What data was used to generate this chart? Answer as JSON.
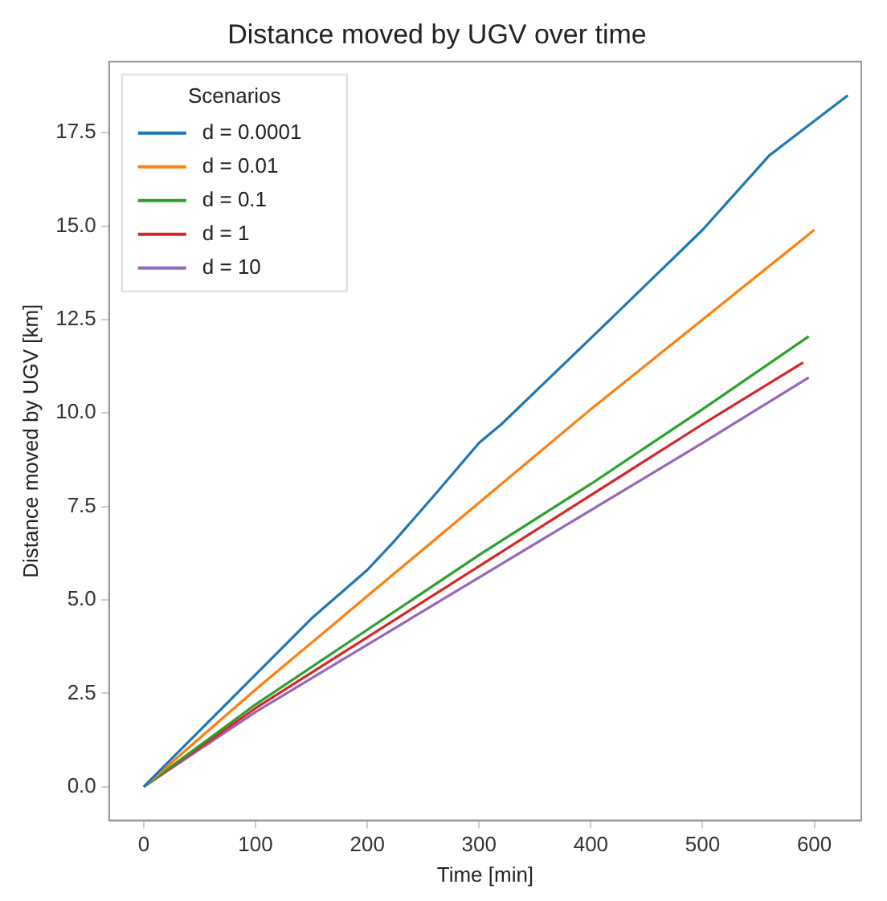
{
  "chart_data": {
    "type": "line",
    "title": "Distance moved by UGV over time",
    "xlabel": "Time [min]",
    "ylabel": "Distance moved by UGV [km]",
    "legend_title": "Scenarios",
    "legend": "top left",
    "grid": false,
    "xlim": [
      -31,
      642
    ],
    "xticks": [
      0,
      100,
      200,
      300,
      400,
      500,
      600
    ],
    "ylim": [
      -0.9,
      19.4
    ],
    "yticks": [
      {
        "value": 0,
        "label": "0.0"
      },
      {
        "value": 2.5,
        "label": "2.5"
      },
      {
        "value": 5,
        "label": "5.0"
      },
      {
        "value": 7.5,
        "label": "7.5"
      },
      {
        "value": 10,
        "label": "10.0"
      },
      {
        "value": 12.5,
        "label": "12.5"
      },
      {
        "value": 15,
        "label": "15.0"
      },
      {
        "value": 17.5,
        "label": "17.5"
      }
    ],
    "series": [
      {
        "name": "d = 0.0001",
        "color": "#1f77b4",
        "x": [
          0,
          50,
          100,
          150,
          200,
          225,
          260,
          300,
          320,
          400,
          500,
          560,
          630
        ],
        "values": [
          0,
          1.5,
          3.0,
          4.5,
          5.8,
          6.6,
          7.8,
          9.2,
          9.7,
          12.0,
          14.9,
          16.9,
          18.5
        ]
      },
      {
        "name": "d = 0.01",
        "color": "#ff7f0e",
        "x": [
          0,
          100,
          200,
          300,
          400,
          500,
          600
        ],
        "values": [
          0,
          2.6,
          5.1,
          7.6,
          10.1,
          12.5,
          14.9
        ]
      },
      {
        "name": "d = 0.1",
        "color": "#2ca02c",
        "x": [
          0,
          100,
          200,
          300,
          400,
          500,
          595
        ],
        "values": [
          0,
          2.2,
          4.2,
          6.2,
          8.1,
          10.1,
          12.05
        ]
      },
      {
        "name": "d = 1",
        "color": "#d62728",
        "x": [
          0,
          100,
          200,
          300,
          400,
          500,
          590
        ],
        "values": [
          0,
          2.1,
          4.0,
          5.9,
          7.8,
          9.7,
          11.35
        ]
      },
      {
        "name": "d = 10",
        "color": "#9467bd",
        "x": [
          0,
          100,
          200,
          300,
          400,
          500,
          595
        ],
        "values": [
          0,
          2.0,
          3.8,
          5.6,
          7.4,
          9.2,
          10.95
        ]
      }
    ]
  }
}
